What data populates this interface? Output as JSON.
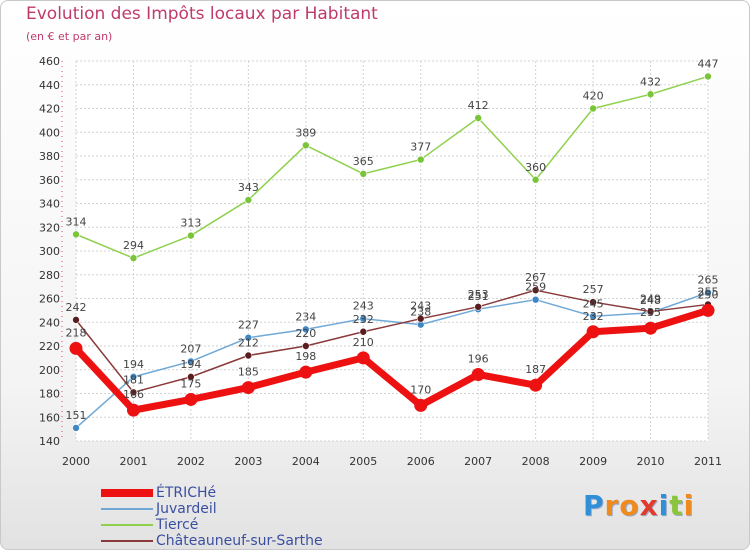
{
  "title": "Evolution des Impôts locaux par Habitant",
  "subtitle": "(en € et par an)",
  "logo": {
    "letters": [
      "P",
      "r",
      "o",
      "x",
      "i",
      "t",
      "i"
    ],
    "colors": [
      "#2f8fd8",
      "#f08a1c",
      "#f08a1c",
      "#e23b2e",
      "#2f8fd8",
      "#8cc43d",
      "#f08a1c"
    ]
  },
  "chart_data": {
    "type": "line",
    "title": "Evolution des Impôts locaux par Habitant",
    "subtitle": "(en € et par an)",
    "xlabel": "",
    "ylabel": "",
    "categories": [
      "2000",
      "2001",
      "2002",
      "2003",
      "2004",
      "2005",
      "2006",
      "2007",
      "2008",
      "2009",
      "2010",
      "2011"
    ],
    "ylim": [
      140,
      460
    ],
    "yticks": [
      140,
      160,
      180,
      200,
      220,
      240,
      260,
      280,
      300,
      320,
      340,
      360,
      380,
      400,
      420,
      440,
      460
    ],
    "grid": true,
    "legend_position": "bottom-left",
    "series": [
      {
        "name": "Tiercé",
        "color": "#8fd14f",
        "marker": "#7ac43a",
        "width": 1.5,
        "values": [
          314,
          294,
          313,
          343,
          389,
          365,
          377,
          412,
          360,
          420,
          432,
          447
        ]
      },
      {
        "name": "Juvardeil",
        "color": "#6fa8d6",
        "marker": "#3f86c4",
        "width": 1.5,
        "values": [
          151,
          194,
          207,
          227,
          234,
          243,
          238,
          251,
          259,
          245,
          248,
          265
        ]
      },
      {
        "name": "Châteauneuf-sur-Sarthe",
        "color": "#8a3a3a",
        "marker": "#5a1d1d",
        "width": 1.5,
        "values": [
          242,
          181,
          194,
          212,
          220,
          232,
          243,
          253,
          267,
          257,
          249,
          255
        ]
      },
      {
        "name": "ÉTRICHé",
        "color": "#ee1111",
        "marker": "#ee1111",
        "width": 7,
        "values": [
          218,
          166,
          175,
          185,
          198,
          210,
          170,
          196,
          187,
          232,
          235,
          250
        ]
      }
    ],
    "data_labels": [
      {
        "series": "Tiercé",
        "labels": [
          "314",
          "294",
          "313",
          "343",
          "389",
          "365",
          "377",
          "412",
          "360",
          "420",
          "432",
          "447"
        ]
      },
      {
        "series": "Juvardeil",
        "labels": [
          "151",
          "194",
          "207",
          "227",
          "234",
          "243",
          "238",
          "251",
          "259",
          "245",
          "248",
          "265"
        ]
      },
      {
        "series": "Châteauneuf-sur-Sarthe",
        "labels": [
          "242",
          "181",
          "194",
          "212",
          "220",
          "232",
          "243",
          "253",
          "267",
          "257",
          "249",
          "255"
        ]
      },
      {
        "series": "ÉTRICHé",
        "labels": [
          "218",
          "166",
          "175",
          "185",
          "198",
          "210",
          "170",
          "196",
          "187",
          "232",
          "235",
          "250"
        ]
      }
    ]
  },
  "legend": [
    {
      "label": "ÉTRICHé",
      "color": "#ee1111"
    },
    {
      "label": "Juvardeil",
      "color": "#6fa8d6"
    },
    {
      "label": "Tiercé",
      "color": "#8fd14f"
    },
    {
      "label": "Châteauneuf-sur-Sarthe",
      "color": "#8a3a3a"
    }
  ]
}
